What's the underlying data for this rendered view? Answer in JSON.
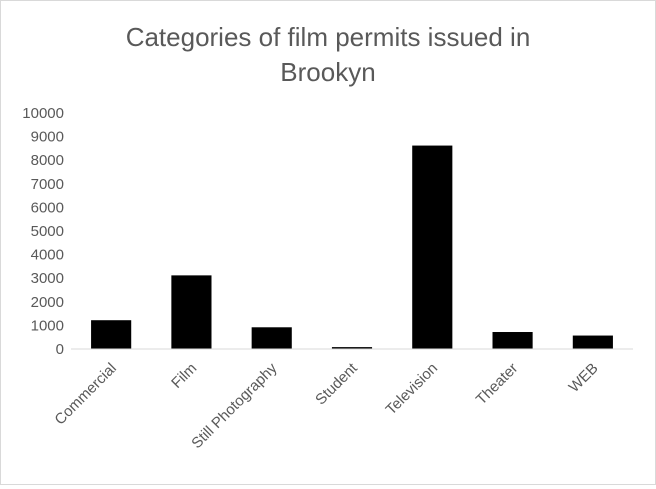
{
  "chart_data": {
    "type": "bar",
    "title": "Categories of film permits issued in Brookyn",
    "title_lines": [
      "Categories of film permits issued in",
      "Brookyn"
    ],
    "xlabel": "",
    "ylabel": "",
    "categories": [
      "Commercial",
      "Film",
      "Still Photography",
      "Student",
      "Television",
      "Theater",
      "WEB"
    ],
    "values": [
      1220,
      3120,
      920,
      80,
      8620,
      720,
      570
    ],
    "ylim": [
      0,
      10000
    ],
    "yticks": [
      0,
      1000,
      2000,
      3000,
      4000,
      5000,
      6000,
      7000,
      8000,
      9000,
      10000
    ],
    "bar_color": "#000000",
    "grid": false,
    "legend": "none"
  }
}
